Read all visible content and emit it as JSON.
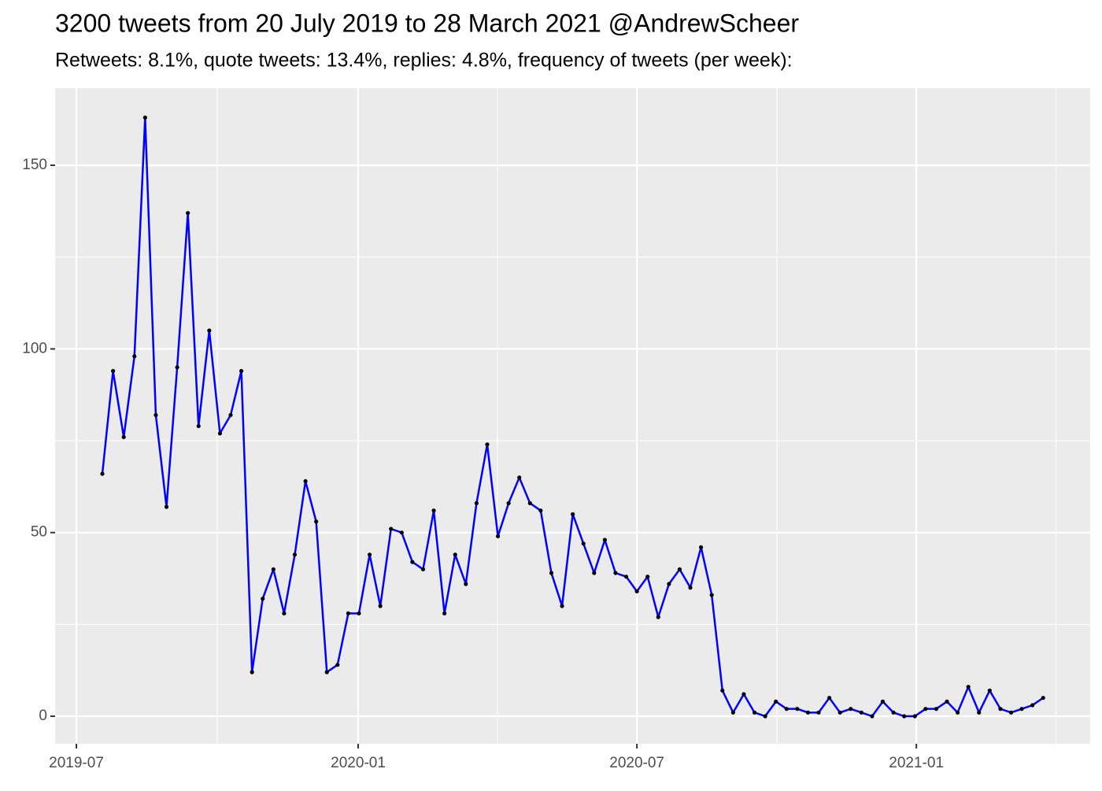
{
  "chart_data": {
    "type": "line",
    "title": "3200 tweets from 20 July 2019 to 28 March 2021 @AndrewScheer",
    "subtitle": "Retweets: 8.1%, quote tweets: 13.4%, replies: 4.8%, frequency of tweets (per week):",
    "categories": [
      null,
      null,
      null,
      null,
      null,
      null,
      null,
      null,
      null,
      null,
      null,
      null,
      null,
      null,
      null,
      null,
      null,
      null,
      null,
      null,
      null,
      null,
      null,
      null,
      null,
      null,
      null,
      null,
      null,
      null,
      null,
      null,
      null,
      null,
      null,
      null,
      null,
      null,
      null,
      null,
      null,
      null,
      null,
      null,
      null,
      null,
      null,
      null,
      null,
      null,
      null,
      null,
      null,
      null,
      null,
      null,
      null,
      null,
      null,
      null,
      null,
      null,
      null,
      null,
      null,
      null,
      null,
      null,
      null,
      null,
      null,
      null,
      null,
      null,
      null,
      null,
      null,
      null,
      null,
      null,
      null,
      null,
      null,
      null,
      null,
      null,
      null,
      null,
      null
    ],
    "series": [
      {
        "color": "#0000ff",
        "marker_color": "#000000",
        "values": [
          66,
          94,
          76,
          98,
          163,
          82,
          57,
          95,
          137,
          79,
          105,
          77,
          82,
          94,
          12,
          32,
          40,
          28,
          44,
          64,
          53,
          12,
          14,
          28,
          28,
          44,
          30,
          51,
          50,
          42,
          40,
          56,
          28,
          44,
          36,
          58,
          74,
          49,
          58,
          65,
          58,
          56,
          39,
          30,
          55,
          47,
          39,
          48,
          39,
          38,
          34,
          38,
          27,
          36,
          40,
          35,
          46,
          33,
          7,
          1,
          6,
          1,
          0,
          4,
          2,
          2,
          1,
          1,
          5,
          1,
          2,
          1,
          0,
          4,
          1,
          0,
          0,
          2,
          2,
          4,
          1,
          8,
          1,
          7,
          2,
          1,
          2,
          3,
          5
        ]
      }
    ],
    "xlim": [
      -4.42,
      92.4
    ],
    "xticks": [
      {
        "value": -2.43,
        "label": "2019-07"
      },
      {
        "value": 23.93,
        "label": "2020-01"
      },
      {
        "value": 50.0,
        "label": "2020-07"
      },
      {
        "value": 76.14,
        "label": "2021-01"
      }
    ],
    "xminor_ticks": [
      10.75,
      36.96,
      63.1,
      89.2
    ],
    "ylim": [
      -7.5,
      171
    ],
    "yticks": [
      0,
      50,
      100,
      150
    ],
    "yminor_ticks": [
      25,
      75,
      125
    ],
    "grid": true
  }
}
